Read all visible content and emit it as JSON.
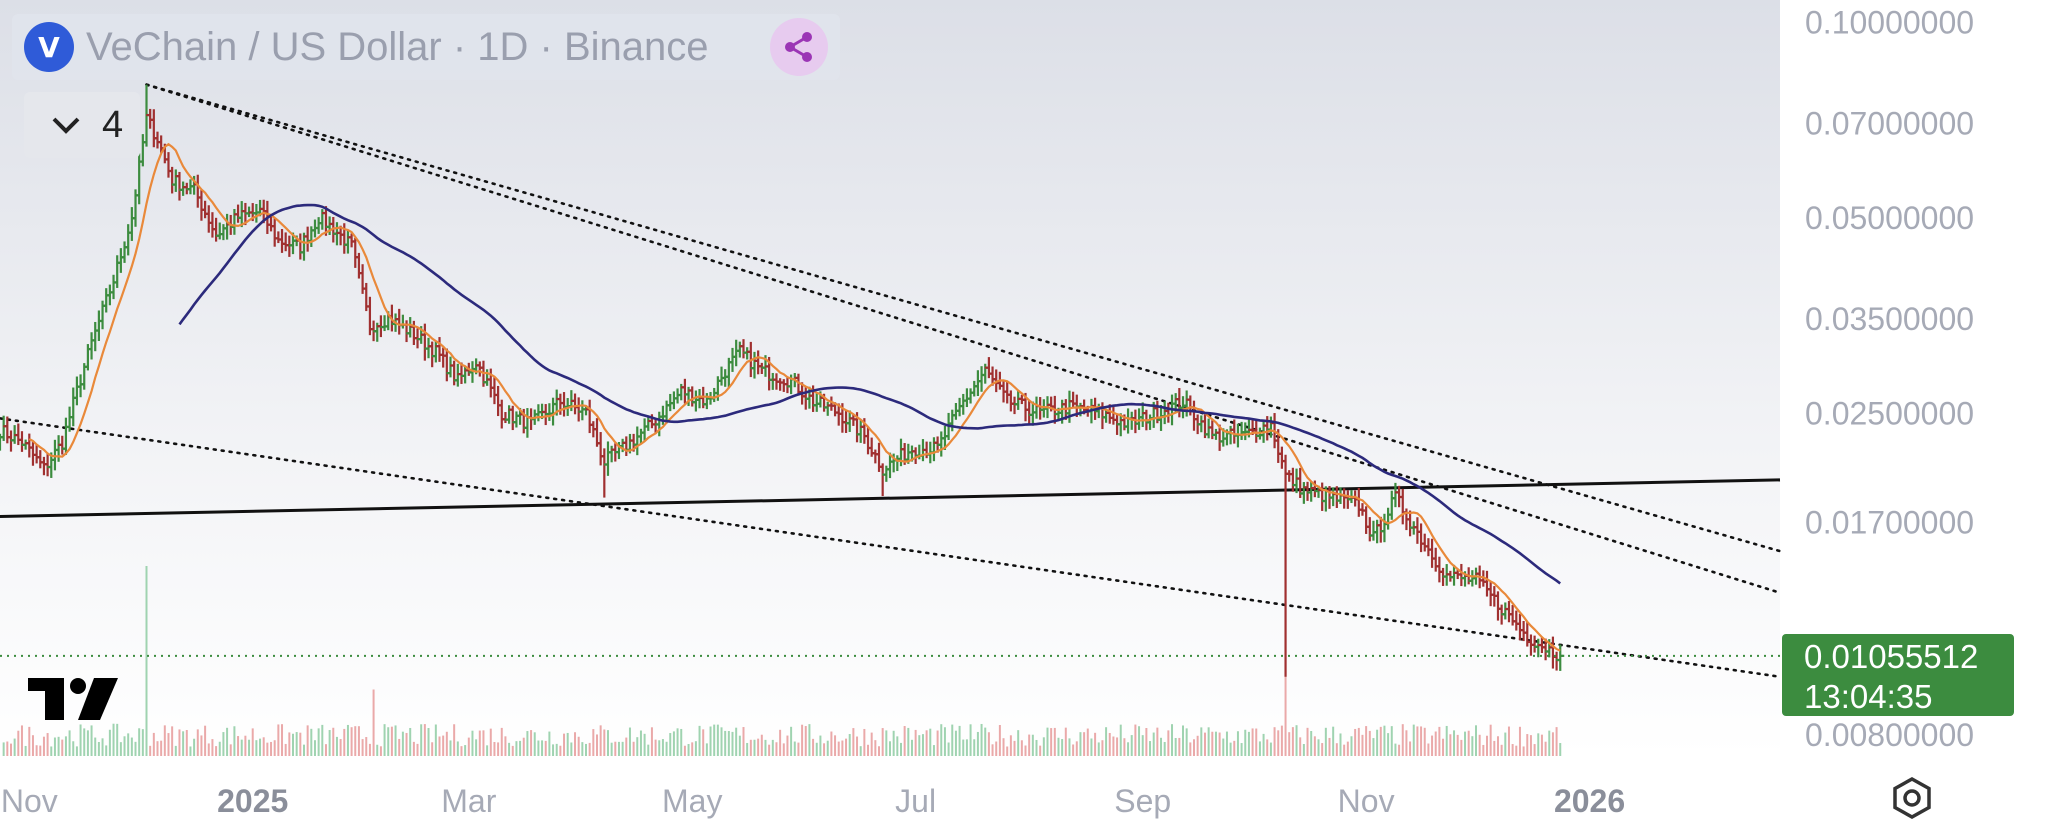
{
  "legend": {
    "symbol_logo": "V",
    "title": "VeChain / US Dollar · 1D · Binance",
    "indicator_count": "4"
  },
  "icons": {
    "logo": "vechain-logo-icon",
    "share": "share-icon",
    "collapse": "chevron-down-icon",
    "brand": "tradingview-logo-icon",
    "settings": "settings-hexagon-icon"
  },
  "colors": {
    "up": "#3c8c3f",
    "down": "#a03030",
    "ma_fast": "#e9893a",
    "ma_slow": "#2c2a7c",
    "price_line": "#3c8c3f",
    "price_tag_bg": "#3c8c3f",
    "legend_text": "#9a9fae",
    "axis_text": "#a6aab6"
  },
  "price_tag": {
    "price": "0.01055512",
    "countdown": "13:04:35"
  },
  "chart_data": {
    "type": "line",
    "subtype": "ohlc-bars",
    "scale": "log",
    "x_range": [
      "2024-10-24",
      "2026-02-22"
    ],
    "y_range": [
      0.0074,
      0.108
    ],
    "y_ticks": [
      "0.10000000",
      "0.07000000",
      "0.05000000",
      "0.03500000",
      "0.02500000",
      "0.01700000",
      "0.00800000"
    ],
    "y_tick_values": [
      0.1,
      0.07,
      0.05,
      0.035,
      0.025,
      0.017,
      0.008
    ],
    "x_ticks": [
      {
        "label": "Nov",
        "date": "2024-11-01",
        "bold": false
      },
      {
        "label": "2025",
        "date": "2025-01-01",
        "bold": true
      },
      {
        "label": "Mar",
        "date": "2025-03-01",
        "bold": false
      },
      {
        "label": "May",
        "date": "2025-05-01",
        "bold": false
      },
      {
        "label": "Jul",
        "date": "2025-07-01",
        "bold": false
      },
      {
        "label": "Sep",
        "date": "2025-09-01",
        "bold": false
      },
      {
        "label": "Nov",
        "date": "2025-11-01",
        "bold": false
      },
      {
        "label": "2026",
        "date": "2026-01-01",
        "bold": true
      }
    ],
    "last_price": 0.01055512,
    "price_anchors": [
      [
        "2024-10-24",
        0.0235
      ],
      [
        "2024-10-30",
        0.0225
      ],
      [
        "2024-11-05",
        0.0205
      ],
      [
        "2024-11-10",
        0.0225
      ],
      [
        "2024-11-14",
        0.027
      ],
      [
        "2024-11-18",
        0.032
      ],
      [
        "2024-11-24",
        0.04
      ],
      [
        "2024-11-29",
        0.05
      ],
      [
        "2024-12-03",
        0.071
      ],
      [
        "2024-12-06",
        0.066
      ],
      [
        "2024-12-10",
        0.057
      ],
      [
        "2024-12-16",
        0.055
      ],
      [
        "2024-12-22",
        0.047
      ],
      [
        "2024-12-28",
        0.05
      ],
      [
        "2025-01-03",
        0.051
      ],
      [
        "2025-01-08",
        0.046
      ],
      [
        "2025-01-14",
        0.045
      ],
      [
        "2025-01-19",
        0.05
      ],
      [
        "2025-01-23",
        0.048
      ],
      [
        "2025-01-28",
        0.045
      ],
      [
        "2025-02-02",
        0.034
      ],
      [
        "2025-02-07",
        0.035
      ],
      [
        "2025-02-14",
        0.033
      ],
      [
        "2025-02-20",
        0.031
      ],
      [
        "2025-02-26",
        0.028
      ],
      [
        "2025-03-03",
        0.03
      ],
      [
        "2025-03-10",
        0.025
      ],
      [
        "2025-03-18",
        0.024
      ],
      [
        "2025-03-26",
        0.026
      ],
      [
        "2025-04-02",
        0.025
      ],
      [
        "2025-04-07",
        0.021
      ],
      [
        "2025-04-12",
        0.022
      ],
      [
        "2025-04-20",
        0.024
      ],
      [
        "2025-04-28",
        0.027
      ],
      [
        "2025-05-05",
        0.026
      ],
      [
        "2025-05-10",
        0.029
      ],
      [
        "2025-05-14",
        0.031
      ],
      [
        "2025-05-20",
        0.029
      ],
      [
        "2025-05-28",
        0.028
      ],
      [
        "2025-06-03",
        0.026
      ],
      [
        "2025-06-10",
        0.025
      ],
      [
        "2025-06-17",
        0.023
      ],
      [
        "2025-06-22",
        0.0205
      ],
      [
        "2025-06-30",
        0.022
      ],
      [
        "2025-07-07",
        0.022
      ],
      [
        "2025-07-14",
        0.026
      ],
      [
        "2025-07-20",
        0.029
      ],
      [
        "2025-07-26",
        0.026
      ],
      [
        "2025-08-04",
        0.025
      ],
      [
        "2025-08-12",
        0.0255
      ],
      [
        "2025-08-20",
        0.025
      ],
      [
        "2025-08-28",
        0.024
      ],
      [
        "2025-09-05",
        0.025
      ],
      [
        "2025-09-12",
        0.026
      ],
      [
        "2025-09-20",
        0.023
      ],
      [
        "2025-09-28",
        0.023
      ],
      [
        "2025-10-06",
        0.024
      ],
      [
        "2025-10-10",
        0.02
      ],
      [
        "2025-10-15",
        0.019
      ],
      [
        "2025-10-22",
        0.0185
      ],
      [
        "2025-10-30",
        0.018
      ],
      [
        "2025-11-03",
        0.016
      ],
      [
        "2025-11-09",
        0.0185
      ],
      [
        "2025-11-16",
        0.016
      ],
      [
        "2025-11-23",
        0.014
      ],
      [
        "2025-12-01",
        0.0138
      ],
      [
        "2025-12-08",
        0.0125
      ],
      [
        "2025-12-15",
        0.0113
      ],
      [
        "2025-12-21",
        0.0108
      ],
      [
        "2025-12-24",
        0.01055512
      ]
    ],
    "wick_extremes": [
      {
        "date": "2024-12-03",
        "high": 0.08
      },
      {
        "date": "2025-04-07",
        "low": 0.0185
      },
      {
        "date": "2025-06-22",
        "low": 0.0186
      },
      {
        "date": "2025-10-10",
        "low": 0.0098
      }
    ],
    "volume_spikes": [
      {
        "date": "2024-12-03",
        "value": 1.0
      },
      {
        "date": "2025-02-03",
        "value": 0.35
      },
      {
        "date": "2025-10-10",
        "value": 0.45
      }
    ],
    "trendlines": [
      {
        "name": "upper_channel_1",
        "style": "dotted",
        "from": [
          "2024-12-03",
          0.08
        ],
        "to": [
          "2026-02-22",
          0.0132
        ]
      },
      {
        "name": "upper_channel_2",
        "style": "dotted",
        "from": [
          "2024-12-03",
          0.08
        ],
        "to": [
          "2026-02-22",
          0.0153
        ]
      },
      {
        "name": "lower_channel",
        "style": "dotted",
        "from": [
          "2024-10-24",
          0.0245
        ],
        "to": [
          "2026-02-22",
          0.0098
        ]
      },
      {
        "name": "horizontal_support",
        "style": "solid",
        "from": [
          "2024-10-24",
          0.0173
        ],
        "to": [
          "2026-02-22",
          0.0197
        ]
      }
    ],
    "moving_averages": [
      {
        "period": 9,
        "color": "#e9893a"
      },
      {
        "period": 50,
        "color": "#2c2a7c"
      }
    ]
  }
}
